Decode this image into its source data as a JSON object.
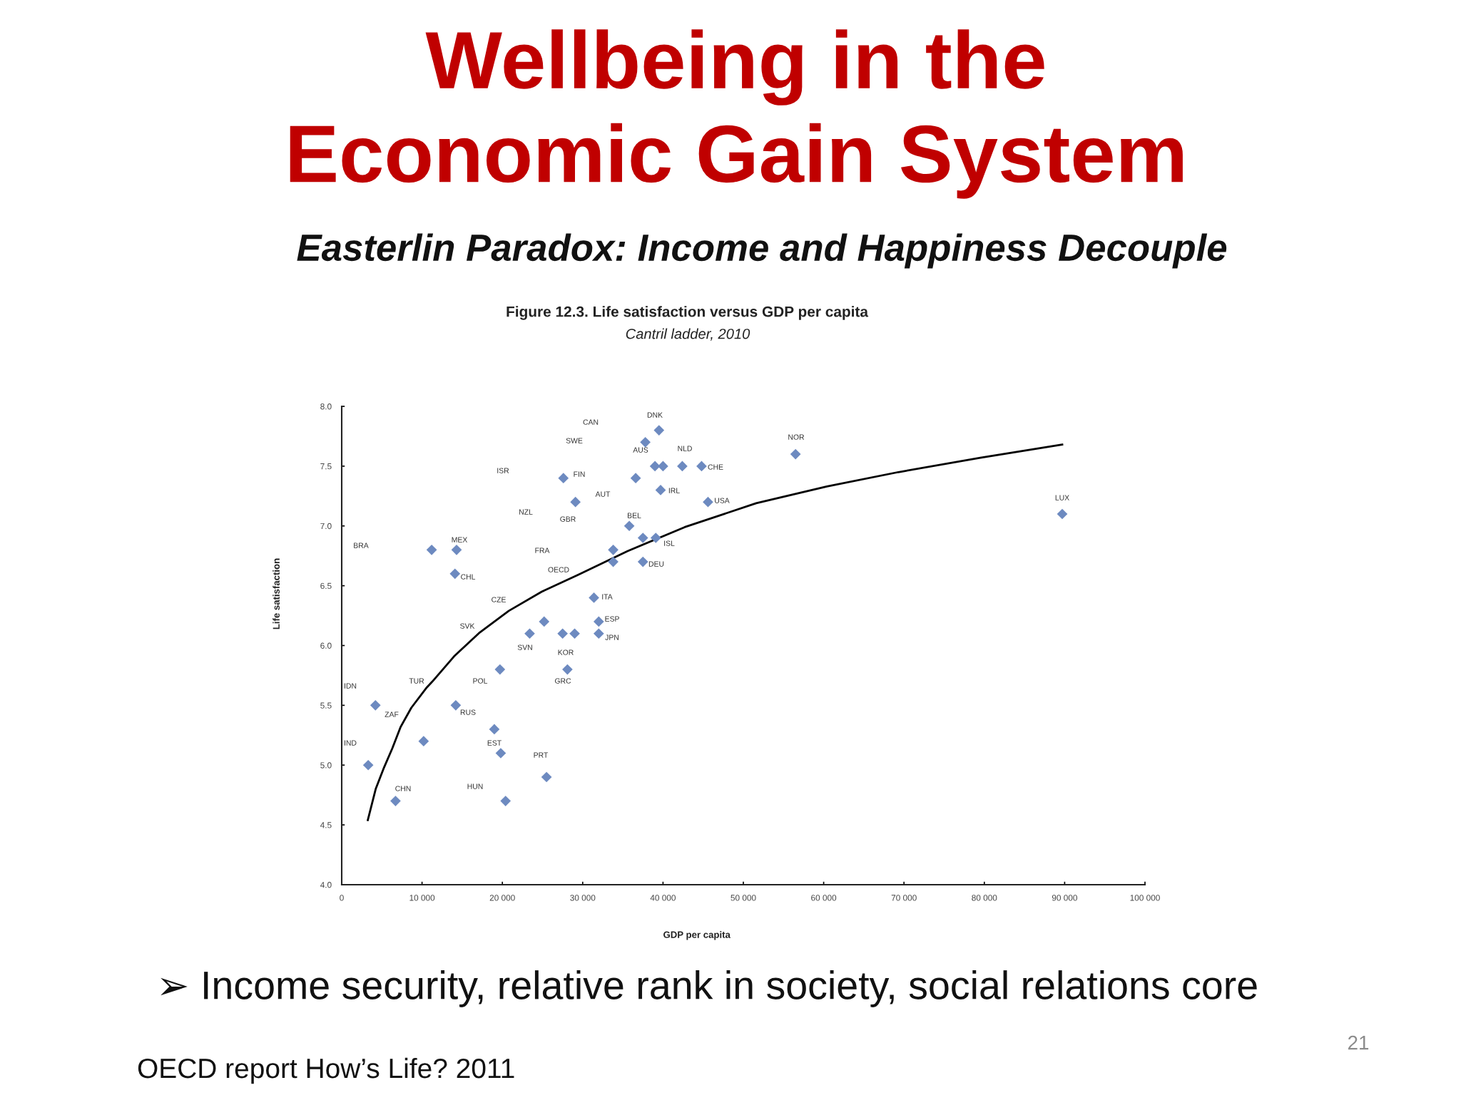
{
  "chart_data": {
    "type": "scatter",
    "title": "Wellbeing in the\nEconomic Gain System",
    "subtitle": "Easterlin Paradox: Income and Happiness Decouple",
    "xlabel": "GDP per capita",
    "ylabel": "Life satisfaction",
    "xlim": [
      0,
      100000
    ],
    "ylim": [
      4,
      8
    ],
    "xticks": [
      0,
      {
        "value": 10000,
        "label": "10 000"
      },
      {
        "value": 20000,
        "label": "20 000"
      },
      {
        "value": 30000,
        "label": "30 000"
      },
      {
        "value": 40000,
        "label": "40 000"
      },
      {
        "value": 50000,
        "label": "50 000"
      },
      {
        "value": 60000,
        "label": "60 000"
      },
      {
        "value": 70000,
        "label": "70 000"
      },
      {
        "value": 80000,
        "label": "80 000"
      },
      {
        "value": 90000,
        "label": "90 000"
      },
      {
        "value": 100000,
        "label": "100 000"
      }
    ],
    "yticks": [
      {
        "value": 4,
        "label": "4.0"
      },
      4.5,
      {
        "value": 5,
        "label": "5.0"
      },
      5.5,
      {
        "value": 6,
        "label": "6.0"
      },
      6.5,
      {
        "value": 7,
        "label": "7.0"
      },
      7.5,
      {
        "value": 8,
        "label": "8.0"
      }
    ],
    "series": [
      {
        "color": "#6d8ac0",
        "marker": "diamond",
        "x": [
          3300,
          4200,
          6700,
          10200,
          11200,
          14100,
          14200,
          14300,
          19000,
          19700,
          19800,
          20400,
          23400,
          25200,
          25500,
          27500,
          27600,
          28100,
          29000,
          29100,
          31400,
          32000,
          32000,
          33800,
          33800,
          35800,
          36600,
          37500,
          37500,
          37800,
          39000,
          39100,
          39500,
          39700,
          40000,
          42400,
          44800,
          45600,
          56500,
          89700
        ],
        "values": [
          5.0,
          5.5,
          4.7,
          5.2,
          6.8,
          6.6,
          5.5,
          6.8,
          5.3,
          5.8,
          5.1,
          4.7,
          6.1,
          6.2,
          4.9,
          6.1,
          7.4,
          5.8,
          6.1,
          7.2,
          6.4,
          6.2,
          6.1,
          6.8,
          6.7,
          7.0,
          7.4,
          6.9,
          6.7,
          7.7,
          7.5,
          6.9,
          7.8,
          7.3,
          7.5,
          7.5,
          7.5,
          7.2,
          7.6,
          7.1
        ]
      },
      {
        "type": "line",
        "color": "#000000",
        "line_style": "solid",
        "x": [
          3250,
          4230,
          5270,
          6300,
          7340,
          8670,
          10600,
          11300,
          14000,
          17200,
          20800,
          24900,
          29400,
          35600,
          42700,
          51600,
          60400,
          69300,
          79500,
          89700
        ],
        "values": [
          4.54,
          4.8,
          4.98,
          5.14,
          5.32,
          5.48,
          5.65,
          5.7,
          5.91,
          6.11,
          6.29,
          6.45,
          6.59,
          6.79,
          6.99,
          7.19,
          7.33,
          7.45,
          7.57,
          7.68
        ]
      }
    ],
    "annotations": [
      "Figure 12.3. Life satisfaction versus GDP per capita",
      "Cantril ladder, 2010",
      "➢ Income security, relative rank in society, social relations core",
      "21",
      "OECD report How’s Life? 2011",
      "CAN",
      "SWE",
      "ISR",
      "FIN",
      "AUT",
      "NZL",
      "GBR",
      "BRA",
      "MEX",
      "FRA",
      "CHL",
      "OECD",
      "CZE",
      "ITA",
      "ESP",
      "SVK",
      "JPN",
      "SVN",
      "KOR",
      "POL",
      "GRC",
      "IDN",
      "TUR",
      "RUS",
      "ZAF",
      "IND",
      "EST",
      "PRT",
      "HUN",
      "CHN",
      "DNK",
      "NOR",
      "AUS",
      "NLD",
      "CHE",
      "IRL",
      "USA",
      "BEL",
      "ISL",
      "DEU",
      "LUX"
    ]
  }
}
